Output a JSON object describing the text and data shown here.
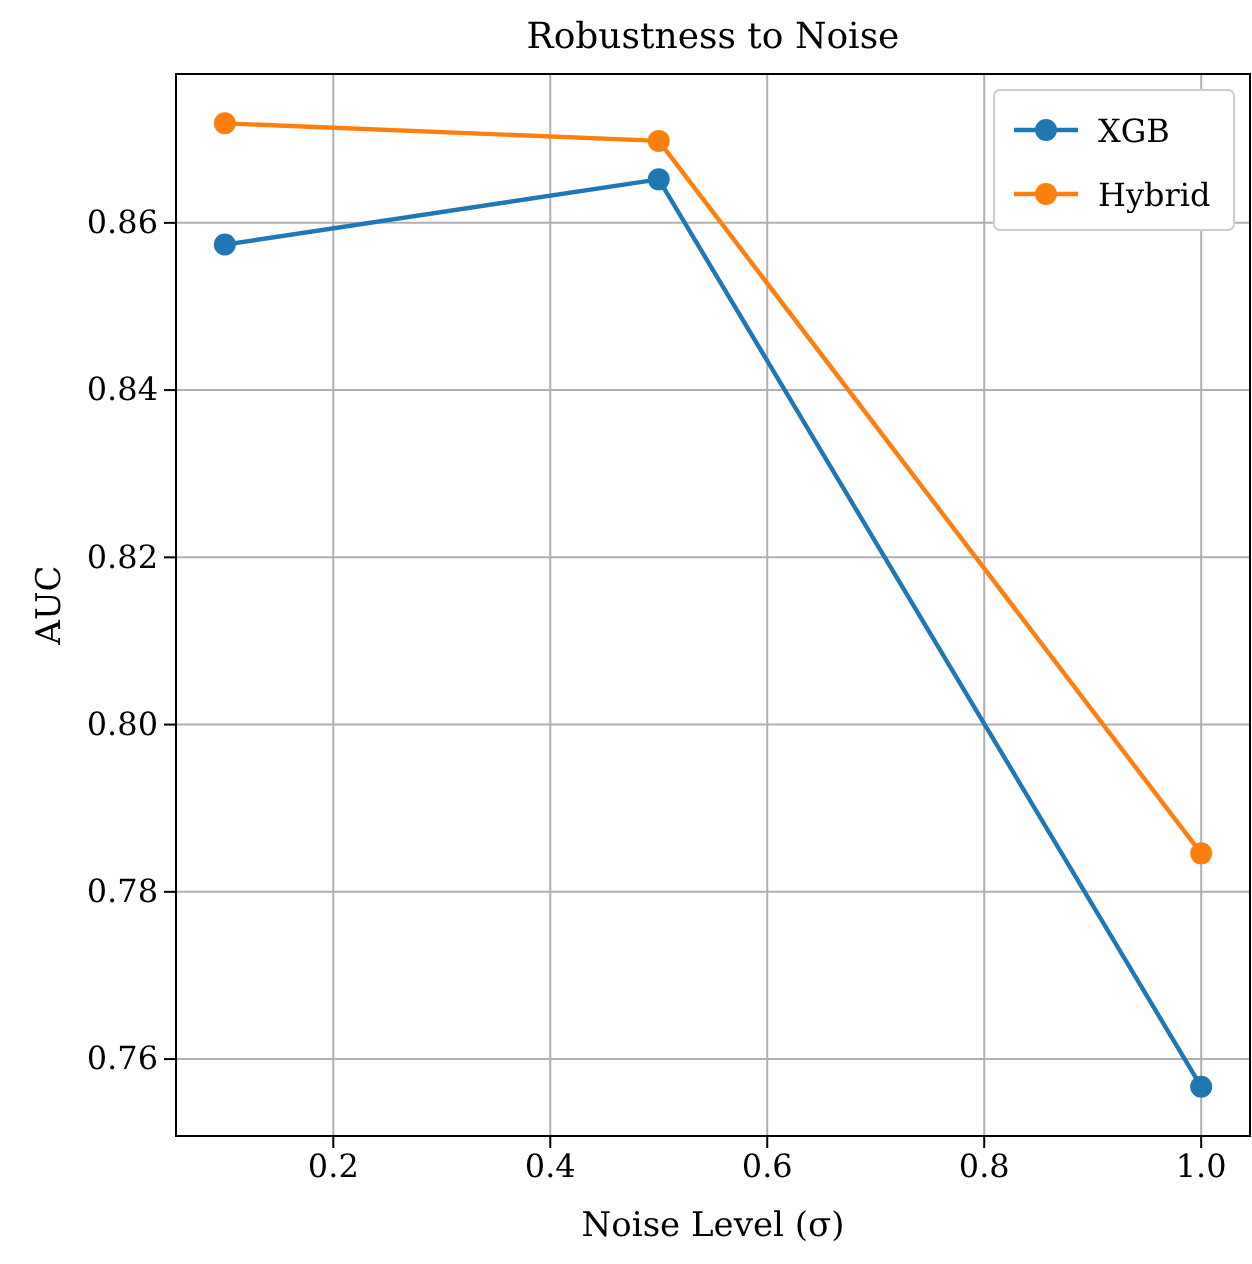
{
  "chart_data": {
    "type": "line",
    "title": "Robustness to Noise",
    "xlabel": "Noise Level (σ)",
    "ylabel": "AUC",
    "x": [
      0.1,
      0.5,
      1.0
    ],
    "series": [
      {
        "name": "XGB",
        "color": "#1f77b4",
        "values": [
          0.8574,
          0.8652,
          0.7567
        ]
      },
      {
        "name": "Hybrid",
        "color": "#ff7f0e",
        "values": [
          0.8719,
          0.8698,
          0.7846
        ]
      }
    ],
    "xlim": [
      0.055,
      1.045
    ],
    "xticks": [
      0.2,
      0.4,
      0.6,
      0.8,
      {
        "value": 1,
        "label": "1.0"
      }
    ],
    "ylim": [
      0.7508,
      0.8778
    ],
    "yticks": [
      0.76,
      0.78,
      {
        "value": 0.8,
        "label": "0.80"
      },
      0.82,
      0.84,
      0.86
    ],
    "grid": true,
    "legend": "top right",
    "marker": "circle",
    "line_style": "solid"
  }
}
